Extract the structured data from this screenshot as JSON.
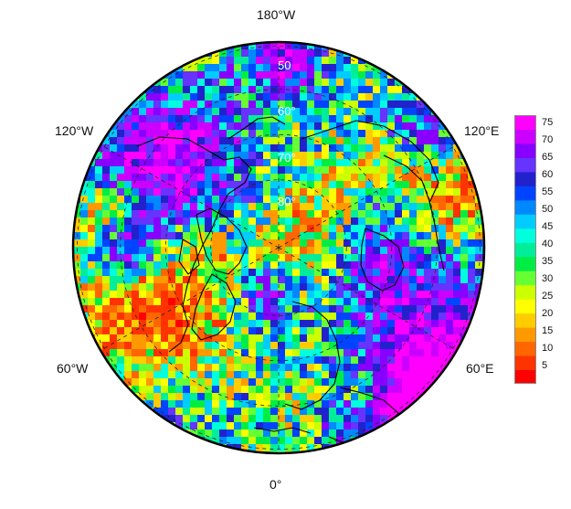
{
  "map": {
    "projection": "north polar stereographic",
    "lon_labels": {
      "top": "180°W",
      "bottom": "0°",
      "upper_left": "120°W",
      "upper_right": "120°E",
      "lower_left": "60°W",
      "lower_right": "60°E"
    },
    "lat_labels": [
      "50",
      "60°",
      "70°",
      "80°"
    ],
    "grid_line_color": "#222222",
    "coastline_color": "#000000"
  },
  "colorbar": {
    "min": 0,
    "max": 77.5,
    "step": 5,
    "ticks": [
      "75",
      "70",
      "65",
      "60",
      "55",
      "50",
      "45",
      "40",
      "35",
      "30",
      "25",
      "20",
      "15",
      "10",
      "5"
    ],
    "colors": [
      "#ff0000",
      "#ff3300",
      "#ff6600",
      "#ff9900",
      "#ffcc00",
      "#ffff00",
      "#ccff00",
      "#66ff33",
      "#00ee44",
      "#00ee99",
      "#00ffdd",
      "#00ccff",
      "#0088ff",
      "#0044ff",
      "#2222cc",
      "#6633ff",
      "#8800ff",
      "#cc00ff",
      "#ff00ff"
    ]
  }
}
